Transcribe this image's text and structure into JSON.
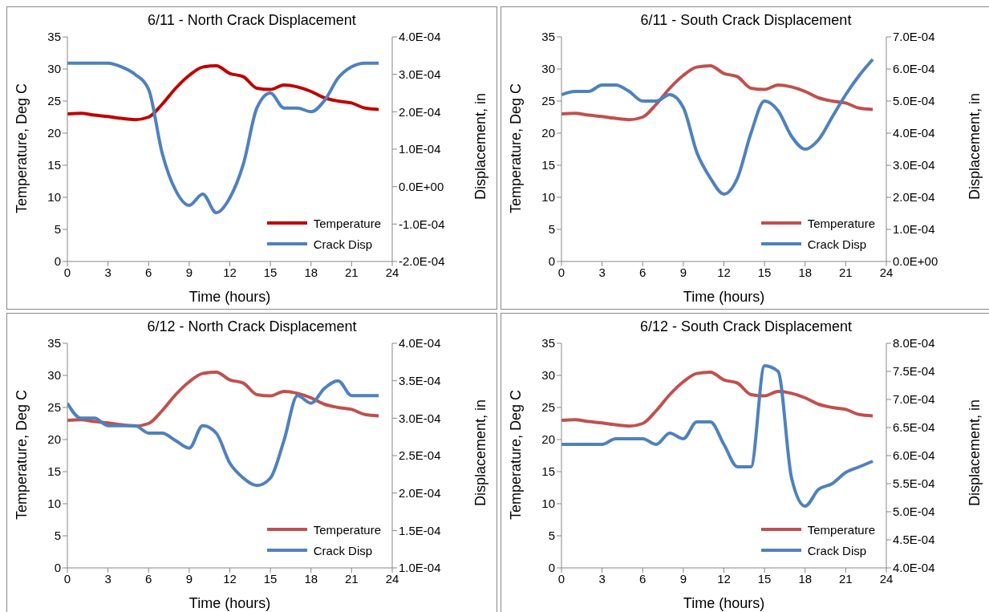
{
  "chart_data": [
    {
      "type": "line",
      "title": "6/11 - North Crack Displacement",
      "xlabel": "Time (hours)",
      "ylabel": "Temperature, Deg C",
      "y2label": "Displacement, in",
      "x": [
        0,
        1,
        2,
        3,
        4,
        5,
        6,
        7,
        8,
        9,
        10,
        11,
        12,
        13,
        14,
        15,
        16,
        17,
        18,
        19,
        20,
        21,
        22,
        23
      ],
      "xlim": [
        0,
        24
      ],
      "xticks": [
        0,
        3,
        6,
        9,
        12,
        15,
        18,
        21,
        24
      ],
      "ylim": [
        0,
        35
      ],
      "yticks": [
        0,
        5,
        10,
        15,
        20,
        25,
        30,
        35
      ],
      "y2lim": [
        -0.0002,
        0.0004
      ],
      "y2ticks": [
        {
          "value": -0.0002,
          "label": "-2.0E-04"
        },
        {
          "value": -0.0001,
          "label": "-1.0E-04"
        },
        {
          "value": 0,
          "label": "0.0E+00"
        },
        {
          "value": 0.0001,
          "label": "1.0E-04"
        },
        {
          "value": 0.0002,
          "label": "2.0E-04"
        },
        {
          "value": 0.0003,
          "label": "3.0E-04"
        },
        {
          "value": 0.0004,
          "label": "4.0E-04"
        }
      ],
      "grid": false,
      "legend": "bottom right",
      "marker": "none",
      "line_style": "solid",
      "series": [
        {
          "name": "Temperature",
          "color": "#c00000",
          "values": [
            23,
            23.1,
            22.8,
            22.6,
            22.3,
            22.1,
            22.5,
            24.5,
            27,
            29,
            30.3,
            30.5,
            29.3,
            28.8,
            27,
            26.8,
            27.5,
            27.2,
            26.5,
            25.5,
            25,
            24.7,
            23.9,
            23.7
          ]
        },
        {
          "name": "Crack Disp",
          "color": "#4f81bd",
          "axis": "y2",
          "values": [
            0.00033,
            0.00033,
            0.00033,
            0.00033,
            0.00032,
            0.0003,
            0.00026,
            9e-05,
            -1e-05,
            -5e-05,
            -2e-05,
            -7e-05,
            -3e-05,
            6e-05,
            0.00021,
            0.00025,
            0.00021,
            0.00021,
            0.0002,
            0.00023,
            0.00029,
            0.00032,
            0.00033,
            0.00033
          ]
        }
      ]
    },
    {
      "type": "line",
      "title": "6/11 - South Crack Displacement",
      "xlabel": "Time (hours)",
      "ylabel": "Temperature, Deg C",
      "y2label": "Displacement, in",
      "x": [
        0,
        1,
        2,
        3,
        4,
        5,
        6,
        7,
        8,
        9,
        10,
        11,
        12,
        13,
        14,
        15,
        16,
        17,
        18,
        19,
        20,
        21,
        22,
        23
      ],
      "xlim": [
        0,
        24
      ],
      "xticks": [
        0,
        3,
        6,
        9,
        12,
        15,
        18,
        21,
        24
      ],
      "ylim": [
        0,
        35
      ],
      "yticks": [
        0,
        5,
        10,
        15,
        20,
        25,
        30,
        35
      ],
      "y2lim": [
        0,
        0.0007
      ],
      "y2ticks": [
        {
          "value": 0,
          "label": "0.0E+00"
        },
        {
          "value": 0.0001,
          "label": "1.0E-04"
        },
        {
          "value": 0.0002,
          "label": "2.0E-04"
        },
        {
          "value": 0.0003,
          "label": "3.0E-04"
        },
        {
          "value": 0.0004,
          "label": "4.0E-04"
        },
        {
          "value": 0.0005,
          "label": "5.0E-04"
        },
        {
          "value": 0.0006,
          "label": "6.0E-04"
        },
        {
          "value": 0.0007,
          "label": "7.0E-04"
        }
      ],
      "grid": false,
      "legend": "bottom right",
      "marker": "none",
      "line_style": "solid",
      "series": [
        {
          "name": "Temperature",
          "color": "#c0504d",
          "values": [
            23,
            23.1,
            22.8,
            22.6,
            22.3,
            22.1,
            22.5,
            24.5,
            27,
            29,
            30.3,
            30.5,
            29.3,
            28.8,
            27,
            26.8,
            27.5,
            27.2,
            26.5,
            25.5,
            25,
            24.7,
            23.9,
            23.7
          ]
        },
        {
          "name": "Crack Disp",
          "color": "#4f81bd",
          "axis": "y2",
          "values": [
            0.00052,
            0.00053,
            0.00053,
            0.00055,
            0.00055,
            0.00053,
            0.0005,
            0.0005,
            0.00052,
            0.00048,
            0.00034,
            0.00026,
            0.00021,
            0.00026,
            0.0004,
            0.0005,
            0.00047,
            0.00039,
            0.00035,
            0.00038,
            0.00045,
            0.00052,
            0.00058,
            0.00063
          ]
        }
      ]
    },
    {
      "type": "line",
      "title": "6/12 - North Crack Displacement",
      "xlabel": "Time (hours)",
      "ylabel": "Temperature, Deg C",
      "y2label": "Displacement, in",
      "x": [
        0,
        1,
        2,
        3,
        4,
        5,
        6,
        7,
        8,
        9,
        10,
        11,
        12,
        13,
        14,
        15,
        16,
        17,
        18,
        19,
        20,
        21,
        22,
        23
      ],
      "xlim": [
        0,
        24
      ],
      "xticks": [
        0,
        3,
        6,
        9,
        12,
        15,
        18,
        21,
        24
      ],
      "ylim": [
        0,
        35
      ],
      "yticks": [
        0,
        5,
        10,
        15,
        20,
        25,
        30,
        35
      ],
      "y2lim": [
        0.0001,
        0.0004
      ],
      "y2ticks": [
        {
          "value": 0.0001,
          "label": "1.0E-04"
        },
        {
          "value": 0.00015,
          "label": "1.5E-04"
        },
        {
          "value": 0.0002,
          "label": "2.0E-04"
        },
        {
          "value": 0.00025,
          "label": "2.5E-04"
        },
        {
          "value": 0.0003,
          "label": "3.0E-04"
        },
        {
          "value": 0.00035,
          "label": "3.5E-04"
        },
        {
          "value": 0.0004,
          "label": "4.0E-04"
        }
      ],
      "grid": false,
      "legend": "bottom right",
      "marker": "none",
      "line_style": "solid",
      "series": [
        {
          "name": "Temperature",
          "color": "#c0504d",
          "values": [
            23,
            23.1,
            22.8,
            22.6,
            22.3,
            22.1,
            22.5,
            24.5,
            27,
            29,
            30.3,
            30.5,
            29.3,
            28.8,
            27,
            26.8,
            27.5,
            27.2,
            26.5,
            25.5,
            25,
            24.7,
            23.9,
            23.7
          ]
        },
        {
          "name": "Crack Disp",
          "color": "#4f81bd",
          "axis": "y2",
          "values": [
            0.00032,
            0.0003,
            0.0003,
            0.00029,
            0.00029,
            0.00029,
            0.00028,
            0.00028,
            0.00027,
            0.00026,
            0.00029,
            0.00028,
            0.00024,
            0.00022,
            0.00021,
            0.00022,
            0.00027,
            0.00033,
            0.00032,
            0.00034,
            0.00035,
            0.00033,
            0.00033,
            0.00033
          ]
        }
      ]
    },
    {
      "type": "line",
      "title": "6/12 - South Crack Displacement",
      "xlabel": "Time (hours)",
      "ylabel": "Temperature, Deg C",
      "y2label": "Displacement, in",
      "x": [
        0,
        1,
        2,
        3,
        4,
        5,
        6,
        7,
        8,
        9,
        10,
        11,
        12,
        13,
        14,
        15,
        16,
        17,
        18,
        19,
        20,
        21,
        22,
        23
      ],
      "xlim": [
        0,
        24
      ],
      "xticks": [
        0,
        3,
        6,
        9,
        12,
        15,
        18,
        21,
        24
      ],
      "ylim": [
        0,
        35
      ],
      "yticks": [
        0,
        5,
        10,
        15,
        20,
        25,
        30,
        35
      ],
      "y2lim": [
        0.0004,
        0.0008
      ],
      "y2ticks": [
        {
          "value": 0.0004,
          "label": "4.0E-04"
        },
        {
          "value": 0.00045,
          "label": "4.5E-04"
        },
        {
          "value": 0.0005,
          "label": "5.0E-04"
        },
        {
          "value": 0.00055,
          "label": "5.5E-04"
        },
        {
          "value": 0.0006,
          "label": "6.0E-04"
        },
        {
          "value": 0.00065,
          "label": "6.5E-04"
        },
        {
          "value": 0.0007,
          "label": "7.0E-04"
        },
        {
          "value": 0.00075,
          "label": "7.5E-04"
        },
        {
          "value": 0.0008,
          "label": "8.0E-04"
        }
      ],
      "grid": false,
      "legend": "bottom right",
      "marker": "none",
      "line_style": "solid",
      "series": [
        {
          "name": "Temperature",
          "color": "#c0504d",
          "values": [
            23,
            23.1,
            22.8,
            22.6,
            22.3,
            22.1,
            22.5,
            24.5,
            27,
            29,
            30.3,
            30.5,
            29.3,
            28.8,
            27,
            26.8,
            27.5,
            27.2,
            26.5,
            25.5,
            25,
            24.7,
            23.9,
            23.7
          ]
        },
        {
          "name": "Crack Disp",
          "color": "#4f81bd",
          "axis": "y2",
          "values": [
            0.00062,
            0.00062,
            0.00062,
            0.00062,
            0.00063,
            0.00063,
            0.00063,
            0.00062,
            0.00064,
            0.00063,
            0.00066,
            0.00066,
            0.00062,
            0.00058,
            0.00058,
            0.00076,
            0.00075,
            0.00056,
            0.00051,
            0.00054,
            0.00055,
            0.00057,
            0.00058,
            0.00059
          ]
        }
      ]
    }
  ]
}
